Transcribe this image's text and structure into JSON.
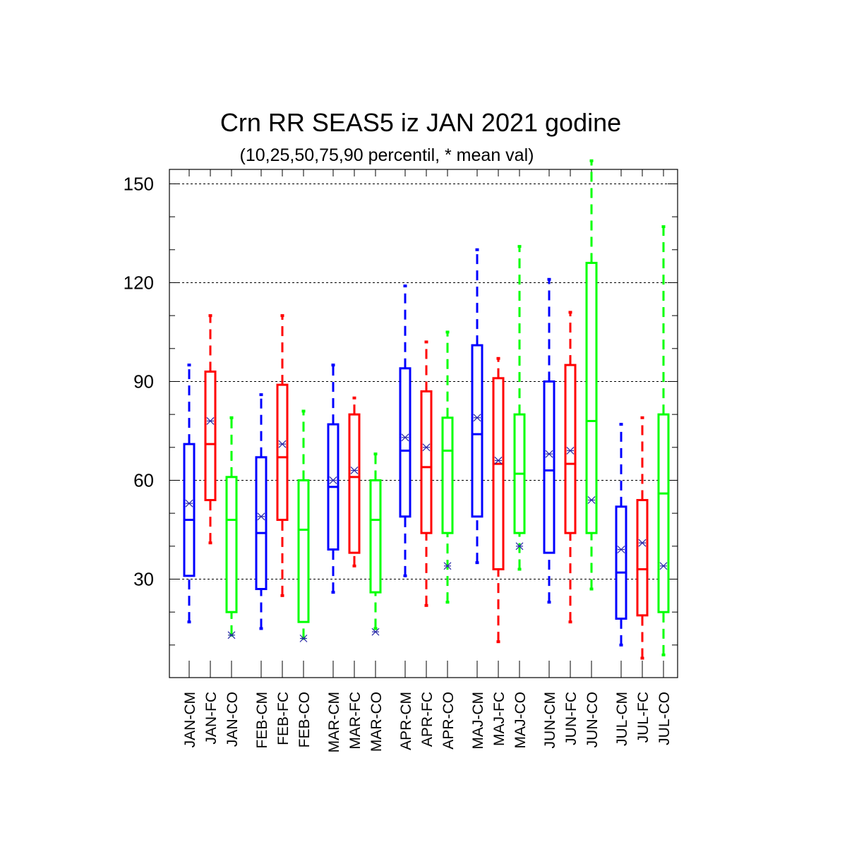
{
  "chart_data": {
    "type": "box",
    "title": "Crn RR SEAS5 iz JAN 2021 godine",
    "subtitle": "(10,25,50,75,90 percentil, * mean val)",
    "ylim": [
      5,
      160
    ],
    "yticks": [
      30,
      60,
      90,
      120,
      150
    ],
    "grid": "horizontal dashed at major ticks",
    "colors": {
      "CM": "#0000ff",
      "FC": "#ff0000",
      "CO": "#00ff00",
      "mean_marker": "#2a2aa8"
    },
    "boxes": [
      {
        "label": "JAN-CM",
        "kind": "CM",
        "p10": 17,
        "p25": 31,
        "p50": 48,
        "p75": 71,
        "p90": 95,
        "mean": 53
      },
      {
        "label": "JAN-FC",
        "kind": "FC",
        "p10": 41,
        "p25": 54,
        "p50": 71,
        "p75": 93,
        "p90": 110,
        "mean": 78
      },
      {
        "label": "JAN-CO",
        "kind": "CO",
        "p10": 13,
        "p25": 20,
        "p50": 48,
        "p75": 61,
        "p90": 79,
        "mean": 13
      },
      {
        "label": "FEB-CM",
        "kind": "CM",
        "p10": 15,
        "p25": 27,
        "p50": 44,
        "p75": 67,
        "p90": 86,
        "mean": 49
      },
      {
        "label": "FEB-FC",
        "kind": "FC",
        "p10": 25,
        "p25": 48,
        "p50": 67,
        "p75": 89,
        "p90": 110,
        "mean": 71
      },
      {
        "label": "FEB-CO",
        "kind": "CO",
        "p10": 12,
        "p25": 17,
        "p50": 45,
        "p75": 60,
        "p90": 81,
        "mean": 12
      },
      {
        "label": "MAR-CM",
        "kind": "CM",
        "p10": 26,
        "p25": 39,
        "p50": 58,
        "p75": 77,
        "p90": 95,
        "mean": 60
      },
      {
        "label": "MAR-FC",
        "kind": "FC",
        "p10": 34,
        "p25": 38,
        "p50": 61,
        "p75": 80,
        "p90": 85,
        "mean": 63
      },
      {
        "label": "MAR-CO",
        "kind": "CO",
        "p10": 15,
        "p25": 26,
        "p50": 48,
        "p75": 60,
        "p90": 68,
        "mean": 14
      },
      {
        "label": "APR-CM",
        "kind": "CM",
        "p10": 31,
        "p25": 49,
        "p50": 69,
        "p75": 94,
        "p90": 119,
        "mean": 73
      },
      {
        "label": "APR-FC",
        "kind": "FC",
        "p10": 22,
        "p25": 44,
        "p50": 64,
        "p75": 87,
        "p90": 102,
        "mean": 70
      },
      {
        "label": "APR-CO",
        "kind": "CO",
        "p10": 23,
        "p25": 44,
        "p50": 69,
        "p75": 79,
        "p90": 105,
        "mean": 34
      },
      {
        "label": "MAJ-CM",
        "kind": "CM",
        "p10": 35,
        "p25": 49,
        "p50": 74,
        "p75": 101,
        "p90": 130,
        "mean": 79
      },
      {
        "label": "MAJ-FC",
        "kind": "FC",
        "p10": 11,
        "p25": 33,
        "p50": 65,
        "p75": 91,
        "p90": 97,
        "mean": 66
      },
      {
        "label": "MAJ-CO",
        "kind": "CO",
        "p10": 33,
        "p25": 44,
        "p50": 62,
        "p75": 80,
        "p90": 131,
        "mean": 40
      },
      {
        "label": "JUN-CM",
        "kind": "CM",
        "p10": 23,
        "p25": 38,
        "p50": 63,
        "p75": 90,
        "p90": 121,
        "mean": 68
      },
      {
        "label": "JUN-FC",
        "kind": "FC",
        "p10": 17,
        "p25": 44,
        "p50": 65,
        "p75": 95,
        "p90": 111,
        "mean": 69
      },
      {
        "label": "JUN-CO",
        "kind": "CO",
        "p10": 27,
        "p25": 44,
        "p50": 78,
        "p75": 126,
        "p90": 157,
        "mean": 54
      },
      {
        "label": "JUL-CM",
        "kind": "CM",
        "p10": 10,
        "p25": 18,
        "p50": 32,
        "p75": 52,
        "p90": 77,
        "mean": 39
      },
      {
        "label": "JUL-FC",
        "kind": "FC",
        "p10": 6,
        "p25": 19,
        "p50": 33,
        "p75": 54,
        "p90": 79,
        "mean": 41
      },
      {
        "label": "JUL-CO",
        "kind": "CO",
        "p10": 7,
        "p25": 20,
        "p50": 56,
        "p75": 80,
        "p90": 137,
        "mean": 34
      }
    ]
  }
}
